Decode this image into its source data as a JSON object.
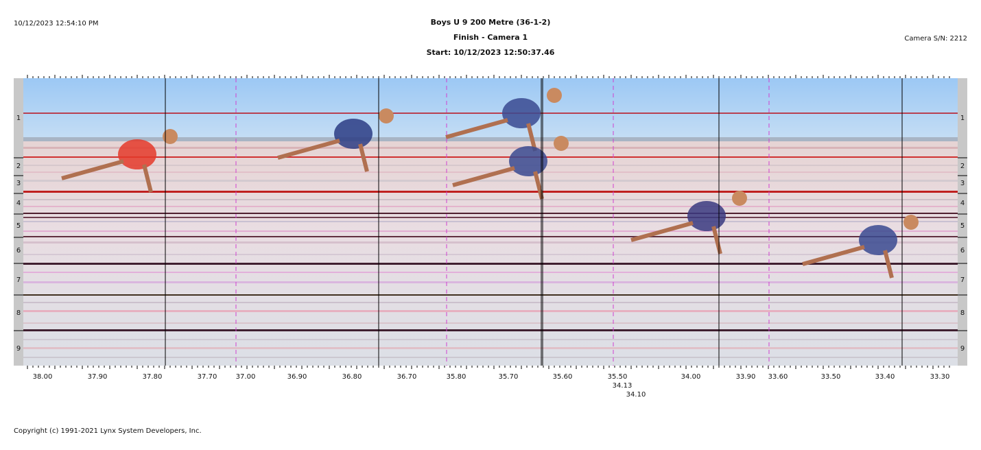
{
  "header": {
    "timestamp": "10/12/2023 12:54:10 PM",
    "title": "Boys U 9 200 Metre (36-1-2)",
    "subtitle": "Finish - Camera 1",
    "start": "Start: 10/12/2023 12:50:37.46",
    "camera": "Camera S/N: 2212"
  },
  "lanes": [
    "1",
    "2",
    "3",
    "4",
    "5",
    "6",
    "7",
    "8",
    "9"
  ],
  "time_axis": [
    "38.00",
    "37.90",
    "37.80",
    "37.70",
    "37.00",
    "36.90",
    "36.80",
    "36.70",
    "35.80",
    "35.70",
    "35.60",
    "35.50",
    "34.00",
    "33.90",
    "33.60",
    "33.50",
    "33.40",
    "33.30"
  ],
  "time_notes": [
    "34.13",
    "34.10"
  ],
  "footer": "Copyright (c) 1991-2021 Lynx System Developers, Inc."
}
